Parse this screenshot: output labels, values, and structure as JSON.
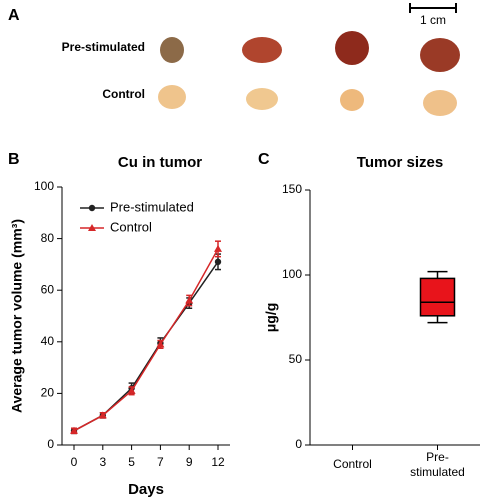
{
  "panel_a": {
    "label": "A",
    "rows": [
      "Pre-stimulated",
      "Control"
    ],
    "scale_bar": "1 cm"
  },
  "chart_data": [
    {
      "type": "line",
      "panel": "B",
      "title": "Cu in tumor",
      "x_label": "Days",
      "y_label": "Average tumor volume (mm³)",
      "categories": [
        "0",
        "3",
        "5",
        "7",
        "9",
        "12"
      ],
      "ylim": [
        0,
        100
      ],
      "yticks": [
        0,
        20,
        40,
        60,
        80,
        100
      ],
      "legend": "top-left",
      "series": [
        {
          "name": "Pre-stimulated",
          "color": "#222222",
          "marker": "circle",
          "values": [
            5.5,
            11.5,
            22,
            39.5,
            55,
            71
          ],
          "errors": [
            1,
            1,
            2,
            2,
            2,
            3
          ]
        },
        {
          "name": "Control",
          "color": "#d62728",
          "marker": "triangle",
          "values": [
            5.5,
            11.5,
            21,
            39,
            56,
            76
          ],
          "errors": [
            1,
            1,
            1.5,
            1.5,
            2,
            3
          ]
        }
      ]
    },
    {
      "type": "box",
      "panel": "C",
      "title": "Tumor sizes",
      "y_label": "μg/g",
      "categories": [
        "Control",
        "Pre-stimulated"
      ],
      "ylim": [
        0,
        150
      ],
      "yticks": [
        0,
        50,
        100,
        150
      ],
      "color": "#e8141b",
      "boxes": [
        null,
        {
          "min": 72,
          "q1": 76,
          "median": 84,
          "q3": 98,
          "max": 102
        }
      ]
    }
  ]
}
